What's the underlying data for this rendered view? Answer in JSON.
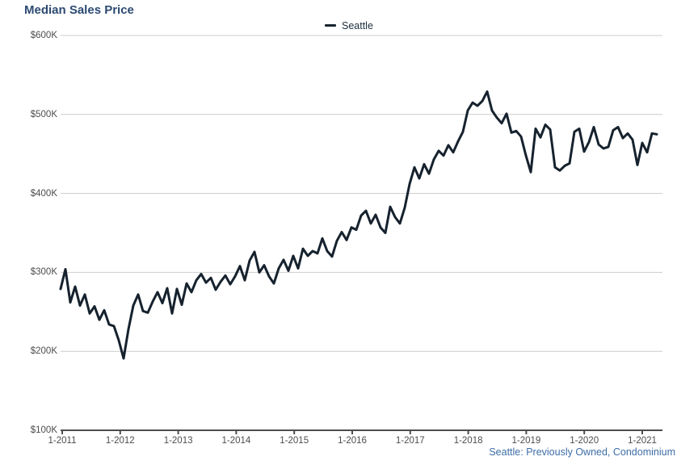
{
  "title": "Median Sales Price",
  "legend": {
    "label": "Seattle"
  },
  "footer": "Seattle: Previously Owned, Condominium",
  "colors": {
    "title_text": "#2c4a72",
    "series_line": "#16222e",
    "footer_text": "#3d6da6",
    "axis_text": "#4d4d4d",
    "gridline": "#cccccc",
    "axis_line": "#4d4d4d"
  },
  "chart_data": {
    "type": "line",
    "title": "Median Sales Price",
    "start": "2011-01",
    "end": "2021-04",
    "frequency": "monthly",
    "unit": "USD thousands",
    "grid": "horizontal",
    "legend_position": "top-center",
    "note": "Seattle: Previously Owned, Condominium",
    "y_tick_labels": [
      "$100K",
      "$200K",
      "$300K",
      "$400K",
      "$500K",
      "$600K"
    ],
    "y_tick_values": [
      100,
      200,
      300,
      400,
      500,
      600
    ],
    "ylim_thousands": [
      100,
      600
    ],
    "x_tick_labels": [
      "1-2011",
      "1-2012",
      "1-2013",
      "1-2014",
      "1-2015",
      "1-2016",
      "1-2017",
      "1-2018",
      "1-2019",
      "1-2020",
      "1-2021"
    ],
    "series": [
      {
        "name": "Seattle",
        "values_thousands": [
          279,
          304,
          262,
          282,
          258,
          272,
          248,
          257,
          240,
          252,
          234,
          232,
          214,
          191,
          228,
          258,
          272,
          251,
          249,
          263,
          275,
          261,
          280,
          248,
          279,
          259,
          286,
          275,
          290,
          298,
          287,
          293,
          278,
          288,
          296,
          285,
          295,
          308,
          290,
          315,
          326,
          300,
          309,
          295,
          286,
          305,
          316,
          302,
          321,
          305,
          330,
          321,
          327,
          324,
          343,
          327,
          320,
          340,
          351,
          341,
          357,
          354,
          372,
          378,
          362,
          373,
          357,
          350,
          383,
          370,
          362,
          382,
          412,
          433,
          419,
          437,
          425,
          443,
          454,
          448,
          461,
          452,
          466,
          478,
          505,
          515,
          511,
          517,
          529,
          505,
          496,
          489,
          501,
          477,
          479,
          472,
          448,
          427,
          482,
          471,
          487,
          481,
          433,
          429,
          435,
          438,
          478,
          482,
          453,
          465,
          484,
          462,
          457,
          459,
          480,
          484,
          470,
          476,
          468,
          436,
          464,
          452,
          476,
          475
        ]
      }
    ]
  }
}
